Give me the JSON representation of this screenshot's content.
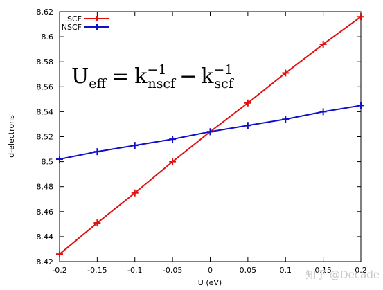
{
  "chart_data": {
    "type": "line",
    "xlabel": "U (eV)",
    "ylabel": "d-electrons",
    "xlim": [
      -0.2,
      0.2
    ],
    "ylim": [
      8.42,
      8.62
    ],
    "xticks": [
      -0.2,
      -0.15,
      -0.1,
      -0.05,
      0,
      0.05,
      0.1,
      0.15,
      0.2
    ],
    "xtick_labels": [
      "-0.2",
      "-0.15",
      "-0.1",
      "-0.05",
      "0",
      "0.05",
      "0.1",
      "0.15",
      "0.2"
    ],
    "yticks": [
      8.42,
      8.44,
      8.46,
      8.48,
      8.5,
      8.52,
      8.54,
      8.56,
      8.58,
      8.6,
      8.62
    ],
    "ytick_labels": [
      "8.42",
      "8.44",
      "8.46",
      "8.48",
      "8.5",
      "8.52",
      "8.54",
      "8.56",
      "8.58",
      "8.6",
      "8.62"
    ],
    "grid": false,
    "legend_position": "top-left",
    "x": [
      -0.2,
      -0.15,
      -0.1,
      -0.05,
      0,
      0.05,
      0.1,
      0.15,
      0.2
    ],
    "series": [
      {
        "name": "SCF",
        "color": "#e01010",
        "marker": "plus",
        "values": [
          8.426,
          8.451,
          8.475,
          8.5,
          8.524,
          8.547,
          8.571,
          8.594,
          8.616
        ]
      },
      {
        "name": "NSCF",
        "color": "#1010c8",
        "marker": "plus",
        "values": [
          8.502,
          8.508,
          8.513,
          8.518,
          8.524,
          8.529,
          8.534,
          8.54,
          8.545
        ]
      }
    ],
    "annotation": {
      "lhs_base": "U",
      "lhs_sub": "eff",
      "equals": "=",
      "t1_base": "k",
      "t1_sup": "−1",
      "t1_sub": "nscf",
      "minus": "−",
      "t2_base": "k",
      "t2_sup": "−1",
      "t2_sub": "scf"
    }
  },
  "watermark": "知乎 @Decade"
}
